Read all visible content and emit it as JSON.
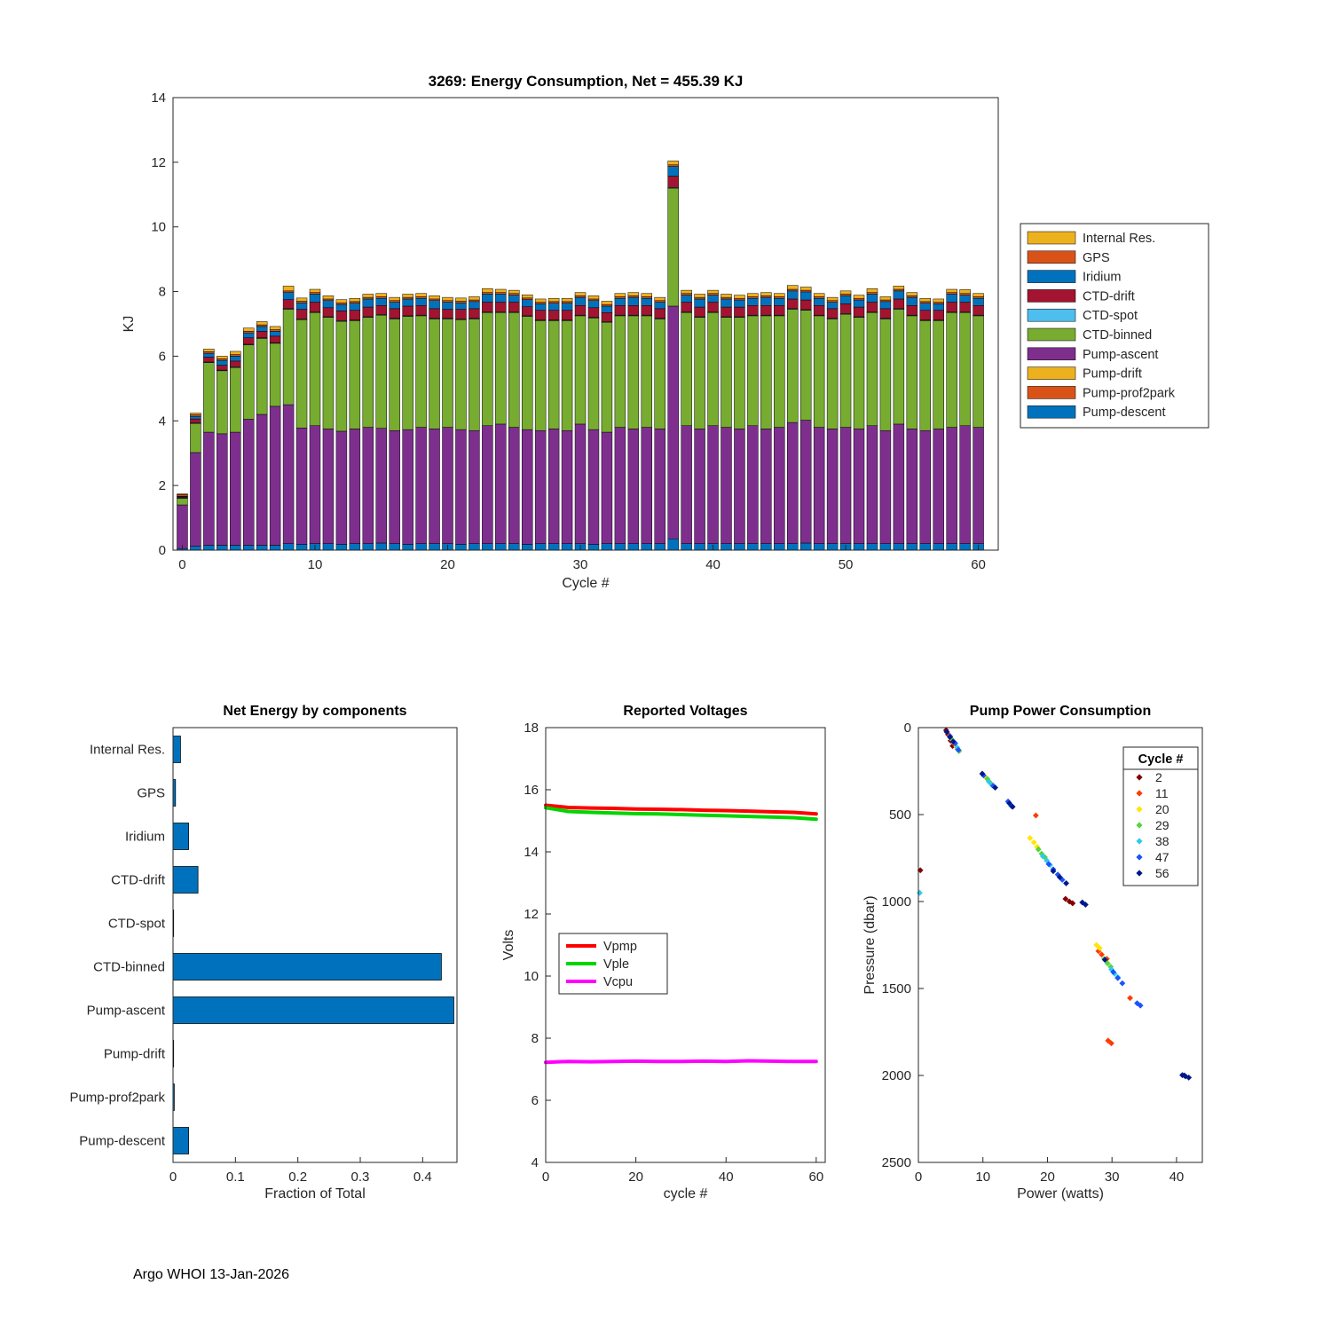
{
  "footer": "Argo WHOI 13-Jan-2026",
  "chart_data": [
    {
      "id": "energy",
      "type": "bar",
      "stacked": true,
      "title": "3269: Energy Consumption,  Net = 455.39 KJ",
      "xlabel": "Cycle #",
      "ylabel": "KJ",
      "xlim": [
        -0.7,
        61.5
      ],
      "ylim": [
        0,
        14
      ],
      "xticks": [
        0,
        10,
        20,
        30,
        40,
        50,
        60
      ],
      "yticks": [
        0,
        2,
        4,
        6,
        8,
        10,
        12,
        14
      ],
      "cycles": 61,
      "legend_position": "outside-right",
      "series": [
        {
          "name": "Pump-descent",
          "color": "#0072BD",
          "values": [
            0.05,
            0.12,
            0.15,
            0.15,
            0.15,
            0.15,
            0.15,
            0.15,
            0.2,
            0.18,
            0.2,
            0.2,
            0.18,
            0.2,
            0.2,
            0.22,
            0.2,
            0.18,
            0.2,
            0.2,
            0.2,
            0.18,
            0.2,
            0.2,
            0.2,
            0.2,
            0.18,
            0.2,
            0.2,
            0.2,
            0.2,
            0.18,
            0.2,
            0.2,
            0.2,
            0.2,
            0.2,
            0.35,
            0.2,
            0.2,
            0.2,
            0.2,
            0.2,
            0.2,
            0.2,
            0.2,
            0.2,
            0.22,
            0.2,
            0.2,
            0.2,
            0.2,
            0.2,
            0.2,
            0.2,
            0.2,
            0.2,
            0.2,
            0.2,
            0.2,
            0.2
          ]
        },
        {
          "name": "Pump-prof2park",
          "color": "#D95319",
          "const": 0
        },
        {
          "name": "Pump-drift",
          "color": "#EDB120",
          "const": 0
        },
        {
          "name": "Pump-ascent",
          "color": "#7E2F8E",
          "values": [
            1.35,
            2.9,
            3.5,
            3.45,
            3.5,
            3.9,
            4.05,
            4.3,
            4.3,
            3.6,
            3.65,
            3.55,
            3.5,
            3.55,
            3.6,
            3.55,
            3.5,
            3.55,
            3.6,
            3.55,
            3.6,
            3.55,
            3.5,
            3.65,
            3.7,
            3.6,
            3.55,
            3.5,
            3.55,
            3.5,
            3.7,
            3.55,
            3.45,
            3.6,
            3.55,
            3.6,
            3.55,
            7.2,
            3.65,
            3.55,
            3.65,
            3.6,
            3.55,
            3.65,
            3.55,
            3.6,
            3.75,
            3.8,
            3.6,
            3.55,
            3.6,
            3.55,
            3.65,
            3.5,
            3.7,
            3.55,
            3.5,
            3.55,
            3.6,
            3.65,
            3.6
          ]
        },
        {
          "name": "CTD-binned",
          "color": "#77AC30",
          "values": [
            0.2,
            0.9,
            2.15,
            1.95,
            2.0,
            2.3,
            2.35,
            1.95,
            2.95,
            3.35,
            3.5,
            3.45,
            3.4,
            3.35,
            3.4,
            3.5,
            3.45,
            3.5,
            3.45,
            3.4,
            3.35,
            3.4,
            3.45,
            3.5,
            3.45,
            3.55,
            3.5,
            3.4,
            3.35,
            3.4,
            3.35,
            3.45,
            3.4,
            3.45,
            3.5,
            3.45,
            3.4,
            3.65,
            3.5,
            3.45,
            3.5,
            3.4,
            3.45,
            3.4,
            3.5,
            3.45,
            3.5,
            3.4,
            3.45,
            3.4,
            3.5,
            3.45,
            3.5,
            3.45,
            3.55,
            3.5,
            3.4,
            3.35,
            3.55,
            3.5,
            3.45
          ]
        },
        {
          "name": "CTD-spot",
          "color": "#4DBEEE",
          "const": 0.02
        },
        {
          "name": "CTD-drift",
          "color": "#A2142F",
          "values": [
            0.03,
            0.12,
            0.15,
            0.15,
            0.18,
            0.2,
            0.2,
            0.2,
            0.28,
            0.3,
            0.3,
            0.28,
            0.3,
            0.3,
            0.3,
            0.28,
            0.3,
            0.3,
            0.3,
            0.3,
            0.28,
            0.3,
            0.3,
            0.3,
            0.3,
            0.3,
            0.28,
            0.3,
            0.3,
            0.3,
            0.3,
            0.3,
            0.28,
            0.3,
            0.3,
            0.3,
            0.3,
            0.35,
            0.3,
            0.3,
            0.3,
            0.3,
            0.3,
            0.3,
            0.3,
            0.3,
            0.3,
            0.3,
            0.3,
            0.3,
            0.3,
            0.3,
            0.3,
            0.3,
            0.3,
            0.3,
            0.3,
            0.3,
            0.3,
            0.3,
            0.3
          ]
        },
        {
          "name": "Iridium",
          "color": "#0072BD",
          "values": [
            0.02,
            0.08,
            0.12,
            0.15,
            0.15,
            0.15,
            0.15,
            0.15,
            0.22,
            0.2,
            0.25,
            0.22,
            0.2,
            0.22,
            0.25,
            0.22,
            0.2,
            0.22,
            0.22,
            0.25,
            0.22,
            0.2,
            0.22,
            0.25,
            0.25,
            0.22,
            0.22,
            0.2,
            0.22,
            0.22,
            0.25,
            0.22,
            0.2,
            0.22,
            0.25,
            0.22,
            0.2,
            0.3,
            0.22,
            0.25,
            0.22,
            0.25,
            0.22,
            0.22,
            0.25,
            0.22,
            0.25,
            0.25,
            0.22,
            0.2,
            0.25,
            0.22,
            0.25,
            0.22,
            0.25,
            0.25,
            0.22,
            0.2,
            0.25,
            0.22,
            0.22
          ]
        },
        {
          "name": "GPS",
          "color": "#D95319",
          "const": 0.05
        },
        {
          "name": "Internal Res.",
          "color": "#EDB120",
          "values": [
            0.02,
            0.05,
            0.08,
            0.08,
            0.1,
            0.1,
            0.1,
            0.1,
            0.15,
            0.1,
            0.1,
            0.1,
            0.1,
            0.1,
            0.1,
            0.1,
            0.1,
            0.1,
            0.1,
            0.1,
            0.1,
            0.1,
            0.1,
            0.12,
            0.1,
            0.1,
            0.1,
            0.1,
            0.1,
            0.1,
            0.1,
            0.1,
            0.1,
            0.1,
            0.1,
            0.1,
            0.1,
            0.12,
            0.1,
            0.1,
            0.1,
            0.1,
            0.1,
            0.1,
            0.1,
            0.1,
            0.12,
            0.1,
            0.1,
            0.1,
            0.1,
            0.1,
            0.12,
            0.1,
            0.1,
            0.1,
            0.1,
            0.1,
            0.1,
            0.12,
            0.1
          ]
        }
      ]
    },
    {
      "id": "components",
      "type": "bar",
      "orientation": "horizontal",
      "title": "Net Energy by components",
      "xlabel": "Fraction of Total",
      "bar_color": "#0072BD",
      "xlim": [
        0,
        0.455
      ],
      "xticks": [
        0,
        0.1,
        0.2,
        0.3,
        0.4
      ],
      "categories": [
        "Internal Res.",
        "GPS",
        "Iridium",
        "CTD-drift",
        "CTD-spot",
        "CTD-binned",
        "Pump-ascent",
        "Pump-drift",
        "Pump-prof2park",
        "Pump-descent"
      ],
      "values": [
        0.012,
        0.004,
        0.025,
        0.04,
        0.001,
        0.43,
        0.45,
        0.001,
        0.002,
        0.025
      ]
    },
    {
      "id": "voltages",
      "type": "line",
      "title": "Reported Voltages",
      "xlabel": "cycle #",
      "ylabel": "Volts",
      "xlim": [
        0,
        62
      ],
      "ylim": [
        4,
        18
      ],
      "xticks": [
        0,
        20,
        40,
        60
      ],
      "yticks": [
        4,
        6,
        8,
        10,
        12,
        14,
        16,
        18
      ],
      "x": [
        0,
        5,
        10,
        15,
        20,
        25,
        30,
        35,
        40,
        45,
        50,
        55,
        60
      ],
      "legend_position": "inside-left",
      "series": [
        {
          "name": "Vpmp",
          "color": "#FF0000",
          "values": [
            15.5,
            15.43,
            15.41,
            15.4,
            15.38,
            15.37,
            15.36,
            15.34,
            15.33,
            15.31,
            15.29,
            15.27,
            15.22
          ]
        },
        {
          "name": "Vple",
          "color": "#00D500",
          "values": [
            15.42,
            15.3,
            15.27,
            15.25,
            15.23,
            15.22,
            15.2,
            15.18,
            15.16,
            15.14,
            15.12,
            15.1,
            15.05
          ]
        },
        {
          "name": "Vcpu",
          "color": "#FF00FF",
          "values": [
            7.22,
            7.25,
            7.24,
            7.25,
            7.26,
            7.25,
            7.25,
            7.26,
            7.25,
            7.27,
            7.26,
            7.25,
            7.25
          ]
        }
      ]
    },
    {
      "id": "pumppower",
      "type": "scatter",
      "title": "Pump Power Consumption",
      "xlabel": "Power (watts)",
      "ylabel": "Pressure (dbar)",
      "xlim": [
        0,
        44
      ],
      "ylim": [
        0,
        2500
      ],
      "y_reversed": true,
      "xticks": [
        0,
        10,
        20,
        30,
        40
      ],
      "yticks": [
        0,
        500,
        1000,
        1500,
        2000,
        2500
      ],
      "legend_title": "Cycle #",
      "series": [
        {
          "name": "2",
          "color": "#840000",
          "points": [
            [
              4.3,
              15
            ],
            [
              4.6,
              40
            ],
            [
              5.0,
              75
            ],
            [
              5.3,
              105
            ],
            [
              0.3,
              820
            ],
            [
              22.8,
              985
            ],
            [
              23.4,
              1000
            ],
            [
              23.9,
              1010
            ]
          ]
        },
        {
          "name": "11",
          "color": "#FF3B00",
          "points": [
            [
              4.8,
              45
            ],
            [
              5.6,
              95
            ],
            [
              6.1,
              125
            ],
            [
              18.2,
              505
            ],
            [
              27.9,
              1285
            ],
            [
              28.4,
              1305
            ],
            [
              29.2,
              1330
            ],
            [
              32.8,
              1555
            ],
            [
              29.4,
              1800
            ],
            [
              29.9,
              1815
            ]
          ]
        },
        {
          "name": "20",
          "color": "#FFE600",
          "points": [
            [
              5.2,
              70
            ],
            [
              5.9,
              110
            ],
            [
              10.4,
              285
            ],
            [
              10.9,
              305
            ],
            [
              17.3,
              635
            ],
            [
              17.9,
              660
            ],
            [
              18.4,
              685
            ],
            [
              27.6,
              1250
            ],
            [
              28.1,
              1268
            ]
          ]
        },
        {
          "name": "29",
          "color": "#55D43F",
          "points": [
            [
              5.0,
              60
            ],
            [
              6.3,
              135
            ],
            [
              10.7,
              295
            ],
            [
              11.2,
              320
            ],
            [
              18.6,
              700
            ],
            [
              19.1,
              725
            ],
            [
              19.6,
              745
            ],
            [
              28.8,
              1330
            ],
            [
              29.3,
              1355
            ],
            [
              29.8,
              1375
            ]
          ]
        },
        {
          "name": "38",
          "color": "#2FC9EE",
          "points": [
            [
              0.2,
              950
            ],
            [
              5.5,
              85
            ],
            [
              6.0,
              115
            ],
            [
              10.9,
              310
            ],
            [
              11.4,
              330
            ],
            [
              19.3,
              740
            ],
            [
              19.9,
              765
            ],
            [
              20.4,
              790
            ],
            [
              29.9,
              1390
            ],
            [
              30.4,
              1415
            ],
            [
              30.9,
              1435
            ]
          ]
        },
        {
          "name": "47",
          "color": "#1A53FF",
          "points": [
            [
              4.9,
              50
            ],
            [
              5.7,
              90
            ],
            [
              6.2,
              128
            ],
            [
              10.1,
              275
            ],
            [
              11.6,
              335
            ],
            [
              13.9,
              425
            ],
            [
              14.4,
              450
            ],
            [
              20.2,
              785
            ],
            [
              20.9,
              815
            ],
            [
              21.6,
              845
            ],
            [
              22.3,
              875
            ],
            [
              30.2,
              1405
            ],
            [
              30.9,
              1440
            ],
            [
              31.6,
              1470
            ],
            [
              33.9,
              1585
            ],
            [
              34.4,
              1598
            ]
          ]
        },
        {
          "name": "56",
          "color": "#001889",
          "points": [
            [
              4.4,
              25
            ],
            [
              4.9,
              55
            ],
            [
              5.4,
              80
            ],
            [
              9.9,
              265
            ],
            [
              11.9,
              345
            ],
            [
              14.1,
              435
            ],
            [
              14.6,
              455
            ],
            [
              20.9,
              825
            ],
            [
              21.9,
              860
            ],
            [
              22.9,
              895
            ],
            [
              25.4,
              1005
            ],
            [
              25.9,
              1018
            ],
            [
              28.9,
              1335
            ],
            [
              40.9,
              1998
            ],
            [
              41.4,
              2005
            ],
            [
              41.9,
              2012
            ],
            [
              41.2,
              2000
            ]
          ]
        }
      ]
    }
  ]
}
